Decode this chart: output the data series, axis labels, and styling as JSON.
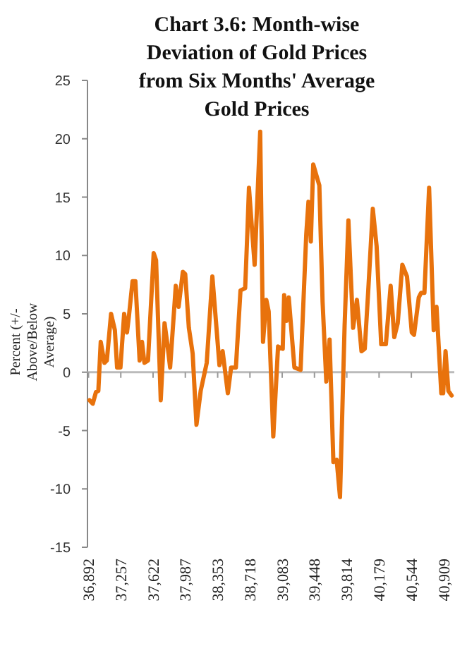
{
  "chart_data": {
    "type": "line",
    "title": "Chart  3.6: Month-wise Deviation of Gold Prices from Six Months' Average Gold Prices",
    "ylabel": "Percent (+/- Above/Below Average)",
    "xlim": [
      36880,
      41030
    ],
    "ylim": [
      -15,
      25
    ],
    "yticks": [
      -15,
      -10,
      -5,
      0,
      5,
      10,
      15,
      20,
      25
    ],
    "xticks": [
      {
        "value": 36892,
        "label": "36,892"
      },
      {
        "value": 37257,
        "label": "37,257"
      },
      {
        "value": 37622,
        "label": "37,622"
      },
      {
        "value": 37987,
        "label": "37,987"
      },
      {
        "value": 38353,
        "label": "38,353"
      },
      {
        "value": 38718,
        "label": "38,718"
      },
      {
        "value": 39083,
        "label": "39,083"
      },
      {
        "value": 39448,
        "label": "39,448"
      },
      {
        "value": 39814,
        "label": "39,814"
      },
      {
        "value": 40179,
        "label": "40,179"
      },
      {
        "value": 40544,
        "label": "40,544"
      },
      {
        "value": 40909,
        "label": "40,909"
      }
    ],
    "marker": "none",
    "line_style": "solid",
    "series": [
      {
        "color": "#e8720c",
        "x": [
          36903,
          36940,
          36976,
          37003,
          37030,
          37072,
          37099,
          37147,
          37190,
          37215,
          37253,
          37295,
          37327,
          37349,
          37390,
          37422,
          37470,
          37497,
          37524,
          37565,
          37629,
          37656,
          37709,
          37752,
          37784,
          37815,
          37879,
          37911,
          37959,
          37986,
          38027,
          38070,
          38113,
          38161,
          38229,
          38293,
          38373,
          38409,
          38468,
          38505,
          38559,
          38611,
          38664,
          38691,
          38707,
          38771,
          38834,
          38866,
          38903,
          38930,
          38982,
          39036,
          39089,
          39105,
          39132,
          39157,
          39221,
          39291,
          39355,
          39380,
          39407,
          39434,
          39503,
          39540,
          39582,
          39619,
          39662,
          39699,
          39737,
          39789,
          39832,
          39885,
          39928,
          39980,
          40017,
          40055,
          40108,
          40151,
          40203,
          40256,
          40310,
          40351,
          40390,
          40442,
          40495,
          40549,
          40574,
          40628,
          40654,
          40692,
          40745,
          40797,
          40829,
          40883,
          40904,
          40931,
          40963,
          41000
        ],
        "values": [
          -2.4,
          -2.7,
          -1.7,
          -1.6,
          2.6,
          0.8,
          1.0,
          5.0,
          3.6,
          0.4,
          0.4,
          5.0,
          3.4,
          4.8,
          7.8,
          7.8,
          1.0,
          2.6,
          0.8,
          1.0,
          10.2,
          9.6,
          -2.4,
          4.2,
          2.4,
          0.4,
          7.4,
          5.6,
          8.6,
          8.4,
          3.8,
          1.6,
          -4.5,
          -1.6,
          0.8,
          8.2,
          0.6,
          1.8,
          -1.8,
          0.4,
          0.4,
          7.0,
          7.2,
          12.4,
          15.8,
          9.2,
          20.6,
          2.6,
          6.2,
          5.2,
          -5.5,
          2.2,
          2.0,
          6.6,
          4.4,
          6.4,
          0.4,
          0.2,
          11.8,
          14.6,
          11.2,
          17.8,
          16.0,
          6.0,
          -0.8,
          2.8,
          -7.7,
          -7.5,
          -10.7,
          4.0,
          13.0,
          3.8,
          6.2,
          1.8,
          2.0,
          6.8,
          14.0,
          10.8,
          2.4,
          2.4,
          7.4,
          3.0,
          4.2,
          9.2,
          8.2,
          3.4,
          3.2,
          6.4,
          6.8,
          6.8,
          15.8,
          3.6,
          5.6,
          -1.8,
          -1.8,
          1.8,
          -1.6,
          -2.0
        ]
      }
    ]
  }
}
